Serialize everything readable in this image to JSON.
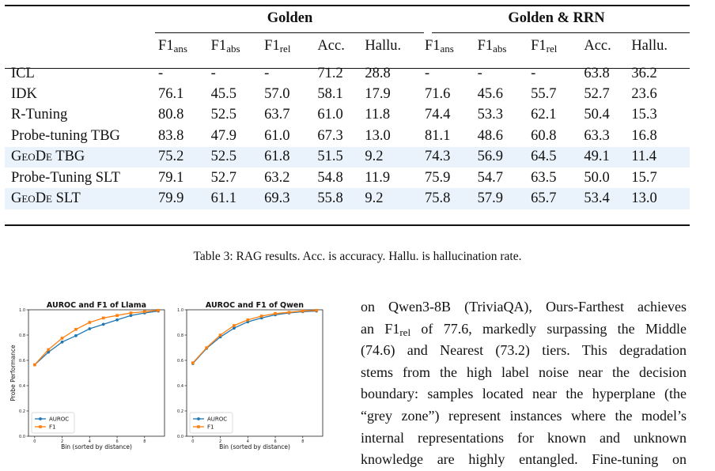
{
  "table": {
    "groups": [
      "Golden",
      "Golden & RRN"
    ],
    "columns": [
      {
        "base": "F1",
        "sub": "ans"
      },
      {
        "base": "F1",
        "sub": "abs"
      },
      {
        "base": "F1",
        "sub": "rel"
      },
      {
        "base": "Acc.",
        "sub": ""
      },
      {
        "base": "Hallu.",
        "sub": ""
      },
      {
        "base": "F1",
        "sub": "ans"
      },
      {
        "base": "F1",
        "sub": "abs"
      },
      {
        "base": "F1",
        "sub": "rel"
      },
      {
        "base": "Acc.",
        "sub": ""
      },
      {
        "base": "Hallu.",
        "sub": ""
      }
    ],
    "rows": [
      {
        "method": "ICL",
        "values": [
          "-",
          "-",
          "-",
          "71.2",
          "28.8",
          "-",
          "-",
          "-",
          "63.8",
          "36.2"
        ],
        "highlight": false,
        "smallcaps": false
      },
      {
        "method": "IDK",
        "values": [
          "76.1",
          "45.5",
          "57.0",
          "58.1",
          "17.9",
          "71.6",
          "45.6",
          "55.7",
          "52.7",
          "23.6"
        ],
        "highlight": false,
        "smallcaps": false
      },
      {
        "method": "R-Tuning",
        "values": [
          "80.8",
          "52.5",
          "63.7",
          "61.0",
          "11.8",
          "74.4",
          "53.3",
          "62.1",
          "50.4",
          "15.3"
        ],
        "highlight": false,
        "smallcaps": false
      },
      {
        "method": "Probe-tuning TBG",
        "values": [
          "83.8",
          "47.9",
          "61.0",
          "67.3",
          "13.0",
          "81.1",
          "48.6",
          "60.8",
          "63.3",
          "16.8"
        ],
        "highlight": false,
        "smallcaps": false
      },
      {
        "method": "GeoDe",
        "method_suffix": " TBG",
        "values": [
          "75.2",
          "52.5",
          "61.8",
          "51.5",
          "9.2",
          "74.3",
          "56.9",
          "64.5",
          "49.1",
          "11.4"
        ],
        "highlight": true,
        "smallcaps": true
      },
      {
        "method": "Probe-Tuning SLT",
        "values": [
          "79.1",
          "52.7",
          "63.2",
          "54.8",
          "11.9",
          "75.9",
          "54.7",
          "63.5",
          "50.0",
          "15.7"
        ],
        "highlight": false,
        "smallcaps": false
      },
      {
        "method": "GeoDe",
        "method_suffix": " SLT",
        "values": [
          "79.9",
          "61.1",
          "69.3",
          "55.8",
          "9.2",
          "75.8",
          "57.9",
          "65.7",
          "53.4",
          "13.0"
        ],
        "highlight": true,
        "smallcaps": true
      }
    ]
  },
  "caption": "Table 3: RAG results. Acc. is accuracy. Hallu. is hallucination rate.",
  "chart_data": [
    {
      "type": "line",
      "title": "AUROC and F1 of Llama",
      "xlabel": "Bin (sorted by distance)",
      "ylabel": "Probe Performance",
      "x": [
        0,
        1,
        2,
        3,
        4,
        5,
        6,
        7,
        8,
        9
      ],
      "xticks": [
        "0",
        "2",
        "4",
        "6",
        "8"
      ],
      "yticks": [
        "0.0",
        "0.2",
        "0.4",
        "0.6",
        "0.8",
        "1.0"
      ],
      "xlim": [
        -0.45,
        9.45
      ],
      "ylim": [
        0,
        1
      ],
      "legend": "lower-left",
      "series": [
        {
          "name": "AUROC",
          "color": "#1f77b4",
          "values": [
            0.565,
            0.665,
            0.745,
            0.795,
            0.85,
            0.885,
            0.92,
            0.955,
            0.975,
            0.99
          ]
        },
        {
          "name": "F1",
          "color": "#ff7f0e",
          "values": [
            0.565,
            0.685,
            0.775,
            0.845,
            0.9,
            0.935,
            0.955,
            0.975,
            0.985,
            0.995
          ]
        }
      ]
    },
    {
      "type": "line",
      "title": "AUROC and F1 of Qwen",
      "xlabel": "Bin (sorted by distance)",
      "ylabel": "",
      "x": [
        0,
        1,
        2,
        3,
        4,
        5,
        6,
        7,
        8,
        9
      ],
      "xticks": [
        "0",
        "2",
        "4",
        "6",
        "8"
      ],
      "yticks": [
        "0.0",
        "0.2",
        "0.4",
        "0.6",
        "0.8",
        "1.0"
      ],
      "xlim": [
        -0.45,
        9.45
      ],
      "ylim": [
        0,
        1
      ],
      "legend": "lower-left",
      "series": [
        {
          "name": "AUROC",
          "color": "#1f77b4",
          "values": [
            0.575,
            0.695,
            0.785,
            0.855,
            0.905,
            0.935,
            0.96,
            0.975,
            0.985,
            0.99
          ]
        },
        {
          "name": "F1",
          "color": "#ff7f0e",
          "values": [
            0.58,
            0.7,
            0.8,
            0.875,
            0.92,
            0.95,
            0.97,
            0.98,
            0.99,
            0.995
          ]
        }
      ]
    }
  ],
  "body_text": {
    "lines": [
      "on Qwen3-8B (TriviaQA), Ours-Farthest achieves",
      "an F1|rel| of 77.6, markedly surpassing the Middle",
      "(74.6) and Nearest (73.2) tiers.  This degradation",
      "stems from the high label noise near the decision",
      "boundary: samples located near the hyperplane (the",
      "“grey zone”) represent instances where the model’s",
      "internal representations for known and unknown",
      "knowledge are highly entangled.  Fine-tuning on"
    ]
  }
}
